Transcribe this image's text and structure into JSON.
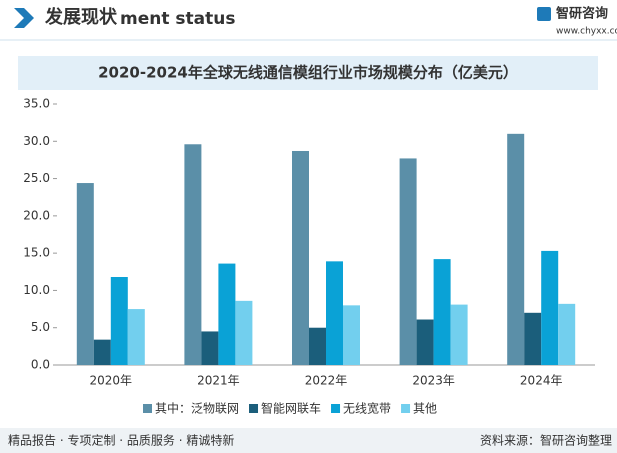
{
  "header": {
    "title": "发展现状",
    "subtitle": "ment status",
    "brand": "智研咨询",
    "url": "www.chyxx.com"
  },
  "chart_data": {
    "type": "bar",
    "title": "2020-2024年全球无线通信模组行业市场规模分布（亿美元）",
    "categories": [
      "2020年",
      "2021年",
      "2022年",
      "2023年",
      "2024年"
    ],
    "series": [
      {
        "name": "其中：泛物联网",
        "color": "#5b8fa8",
        "values": [
          24.4,
          29.6,
          28.7,
          27.7,
          31.0
        ]
      },
      {
        "name": "智能网联车",
        "color": "#1b5e7b",
        "values": [
          3.4,
          4.5,
          5.0,
          6.1,
          7.0
        ]
      },
      {
        "name": "无线宽带",
        "color": "#0aa2d6",
        "values": [
          11.8,
          13.6,
          13.9,
          14.2,
          15.3
        ]
      },
      {
        "name": "其他",
        "color": "#72cfee",
        "values": [
          7.5,
          8.6,
          8.0,
          8.1,
          8.2
        ]
      }
    ],
    "ylim": [
      0,
      35
    ],
    "yticks": [
      {
        "value": 0,
        "label": "0.0"
      },
      {
        "value": 5,
        "label": "5.0"
      },
      {
        "value": 10,
        "label": "10.0"
      },
      {
        "value": 15,
        "label": "15.0"
      },
      {
        "value": 20,
        "label": "20.0"
      },
      {
        "value": 25,
        "label": "25.0"
      },
      {
        "value": 30,
        "label": "30.0"
      },
      {
        "value": 35,
        "label": "35.0"
      }
    ],
    "grid": false
  },
  "footer": {
    "left": "精品报告 · 专项定制 · 品质服务 · 精诚特新",
    "source": "资料来源：智研咨询整理"
  }
}
